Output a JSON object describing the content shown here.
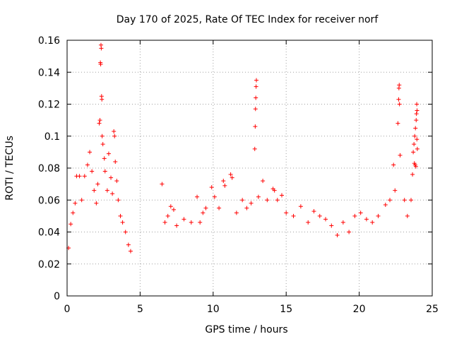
{
  "chart_data": {
    "type": "scatter",
    "title": "Day 170 of 2025, Rate Of TEC Index for receiver norf",
    "xlabel": "GPS time / hours",
    "ylabel": "ROTI / TECUs",
    "xlim": [
      0,
      25
    ],
    "ylim": [
      0,
      0.16
    ],
    "xticks": [
      0,
      5,
      10,
      15,
      20,
      25
    ],
    "xtick_labels": [
      "0",
      "5",
      "10",
      "15",
      "20",
      "25"
    ],
    "yticks": [
      0,
      0.02,
      0.04,
      0.06,
      0.08,
      0.1,
      0.12,
      0.14,
      0.16
    ],
    "ytick_labels": [
      "0",
      "0.02",
      "0.04",
      "0.06",
      "0.08",
      "0.1",
      "0.12",
      "0.14",
      "0.16"
    ],
    "grid": true,
    "marker": "+",
    "color": "#ff0000",
    "data_gap_hours": [
      4.4,
      6.3
    ],
    "series": [
      {
        "name": "ROTI",
        "points": [
          [
            0.1,
            0.03
          ],
          [
            0.25,
            0.045
          ],
          [
            0.4,
            0.052
          ],
          [
            0.55,
            0.058
          ],
          [
            0.65,
            0.075
          ],
          [
            0.85,
            0.075
          ],
          [
            1.0,
            0.06
          ],
          [
            1.2,
            0.075
          ],
          [
            1.4,
            0.082
          ],
          [
            1.55,
            0.09
          ],
          [
            1.7,
            0.078
          ],
          [
            1.85,
            0.066
          ],
          [
            2.0,
            0.058
          ],
          [
            2.1,
            0.07
          ],
          [
            2.2,
            0.108
          ],
          [
            2.25,
            0.11
          ],
          [
            2.28,
            0.146
          ],
          [
            2.3,
            0.145
          ],
          [
            2.32,
            0.157
          ],
          [
            2.34,
            0.155
          ],
          [
            2.36,
            0.125
          ],
          [
            2.38,
            0.123
          ],
          [
            2.4,
            0.1
          ],
          [
            2.45,
            0.095
          ],
          [
            2.55,
            0.086
          ],
          [
            2.6,
            0.078
          ],
          [
            2.75,
            0.066
          ],
          [
            2.85,
            0.089
          ],
          [
            3.0,
            0.074
          ],
          [
            3.1,
            0.064
          ],
          [
            3.2,
            0.103
          ],
          [
            3.25,
            0.1
          ],
          [
            3.3,
            0.084
          ],
          [
            3.4,
            0.072
          ],
          [
            3.5,
            0.06
          ],
          [
            3.65,
            0.05
          ],
          [
            3.8,
            0.046
          ],
          [
            4.0,
            0.04
          ],
          [
            4.2,
            0.032
          ],
          [
            4.35,
            0.028
          ],
          [
            6.5,
            0.07
          ],
          [
            6.7,
            0.046
          ],
          [
            6.9,
            0.05
          ],
          [
            7.1,
            0.056
          ],
          [
            7.3,
            0.054
          ],
          [
            7.5,
            0.044
          ],
          [
            8.0,
            0.048
          ],
          [
            8.5,
            0.046
          ],
          [
            8.9,
            0.062
          ],
          [
            9.1,
            0.046
          ],
          [
            9.3,
            0.052
          ],
          [
            9.5,
            0.055
          ],
          [
            9.9,
            0.068
          ],
          [
            10.1,
            0.062
          ],
          [
            10.4,
            0.055
          ],
          [
            10.7,
            0.072
          ],
          [
            10.8,
            0.069
          ],
          [
            11.2,
            0.076
          ],
          [
            11.3,
            0.074
          ],
          [
            11.6,
            0.052
          ],
          [
            12.0,
            0.06
          ],
          [
            12.3,
            0.055
          ],
          [
            12.6,
            0.058
          ],
          [
            12.85,
            0.092
          ],
          [
            12.88,
            0.106
          ],
          [
            12.9,
            0.117
          ],
          [
            12.92,
            0.124
          ],
          [
            12.94,
            0.131
          ],
          [
            12.96,
            0.135
          ],
          [
            13.1,
            0.062
          ],
          [
            13.4,
            0.072
          ],
          [
            13.7,
            0.06
          ],
          [
            14.1,
            0.067
          ],
          [
            14.2,
            0.066
          ],
          [
            14.4,
            0.06
          ],
          [
            14.7,
            0.063
          ],
          [
            15.0,
            0.052
          ],
          [
            15.5,
            0.05
          ],
          [
            16.0,
            0.056
          ],
          [
            16.5,
            0.046
          ],
          [
            16.9,
            0.053
          ],
          [
            17.3,
            0.05
          ],
          [
            17.7,
            0.048
          ],
          [
            18.1,
            0.044
          ],
          [
            18.5,
            0.038
          ],
          [
            18.9,
            0.046
          ],
          [
            19.3,
            0.04
          ],
          [
            19.7,
            0.05
          ],
          [
            20.1,
            0.052
          ],
          [
            20.5,
            0.048
          ],
          [
            20.9,
            0.046
          ],
          [
            21.3,
            0.05
          ],
          [
            21.8,
            0.057
          ],
          [
            22.1,
            0.06
          ],
          [
            22.35,
            0.082
          ],
          [
            22.45,
            0.066
          ],
          [
            22.65,
            0.108
          ],
          [
            22.7,
            0.123
          ],
          [
            22.72,
            0.13
          ],
          [
            22.74,
            0.132
          ],
          [
            22.76,
            0.12
          ],
          [
            22.8,
            0.088
          ],
          [
            23.1,
            0.06
          ],
          [
            23.3,
            0.05
          ],
          [
            23.55,
            0.06
          ],
          [
            23.65,
            0.076
          ],
          [
            23.7,
            0.09
          ],
          [
            23.75,
            0.095
          ],
          [
            23.8,
            0.1
          ],
          [
            23.85,
            0.105
          ],
          [
            23.9,
            0.11
          ],
          [
            23.92,
            0.114
          ],
          [
            23.94,
            0.12
          ],
          [
            23.96,
            0.116
          ],
          [
            23.98,
            0.092
          ],
          [
            23.88,
            0.081
          ],
          [
            23.83,
            0.082
          ],
          [
            23.78,
            0.083
          ],
          [
            23.95,
            0.098
          ]
        ]
      }
    ]
  }
}
